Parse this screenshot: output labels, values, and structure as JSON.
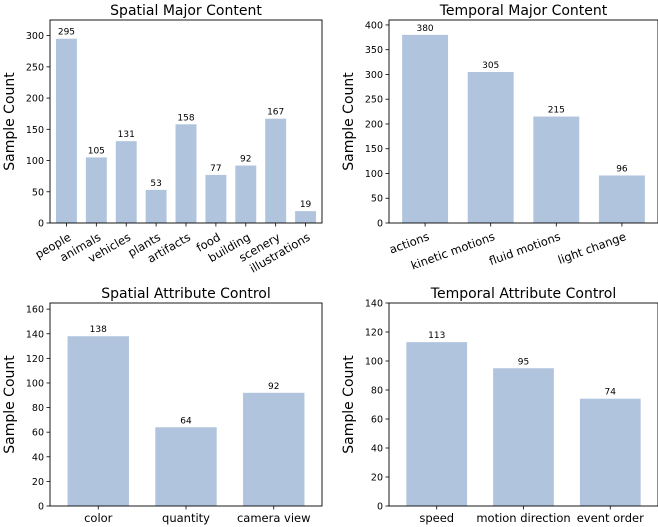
{
  "chart_data": [
    {
      "type": "bar",
      "title": "Spatial Major Content",
      "ylabel": "Sample Count",
      "xlabel": "",
      "categories": [
        "people",
        "animals",
        "vehicles",
        "plants",
        "artifacts",
        "food",
        "building",
        "scenery",
        "illustrations"
      ],
      "values": [
        295,
        105,
        131,
        53,
        158,
        77,
        92,
        167,
        19
      ],
      "ylim": [
        0,
        325
      ],
      "yticks": [
        0,
        50,
        100,
        150,
        200,
        250,
        300
      ],
      "bar_color": "#b0c4de",
      "x_tick_rotation": "rotated",
      "grid": false
    },
    {
      "type": "bar",
      "title": "Temporal Major Content",
      "ylabel": "Sample Count",
      "xlabel": "",
      "categories": [
        "actions",
        "kinetic motions",
        "fluid motions",
        "light change"
      ],
      "values": [
        380,
        305,
        215,
        96
      ],
      "ylim": [
        0,
        410
      ],
      "yticks": [
        0,
        50,
        100,
        150,
        200,
        250,
        300,
        350,
        400
      ],
      "bar_color": "#b0c4de",
      "x_tick_rotation": "rotated",
      "grid": false
    },
    {
      "type": "bar",
      "title": "Spatial Attribute Control",
      "ylabel": "Sample Count",
      "xlabel": "",
      "categories": [
        "color",
        "quantity",
        "camera view"
      ],
      "values": [
        138,
        64,
        92
      ],
      "ylim": [
        0,
        165
      ],
      "yticks": [
        0,
        20,
        40,
        60,
        80,
        100,
        120,
        140,
        160
      ],
      "bar_color": "#b0c4de",
      "x_tick_rotation": "none",
      "grid": false
    },
    {
      "type": "bar",
      "title": "Temporal Attribute Control",
      "ylabel": "Sample Count",
      "xlabel": "",
      "categories": [
        "speed",
        "motion direction",
        "event order"
      ],
      "values": [
        113,
        95,
        74
      ],
      "ylim": [
        0,
        140
      ],
      "yticks": [
        0,
        20,
        40,
        60,
        80,
        100,
        120,
        140
      ],
      "bar_color": "#b0c4de",
      "x_tick_rotation": "none",
      "grid": false
    }
  ]
}
